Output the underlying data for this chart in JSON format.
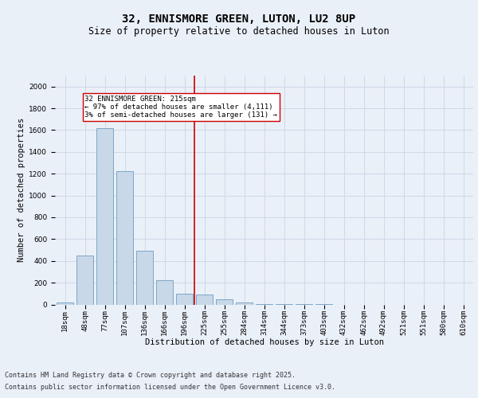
{
  "title_line1": "32, ENNISMORE GREEN, LUTON, LU2 8UP",
  "title_line2": "Size of property relative to detached houses in Luton",
  "xlabel": "Distribution of detached houses by size in Luton",
  "ylabel": "Number of detached properties",
  "categories": [
    "18sqm",
    "48sqm",
    "77sqm",
    "107sqm",
    "136sqm",
    "166sqm",
    "196sqm",
    "225sqm",
    "255sqm",
    "284sqm",
    "314sqm",
    "344sqm",
    "373sqm",
    "403sqm",
    "432sqm",
    "462sqm",
    "492sqm",
    "521sqm",
    "551sqm",
    "580sqm",
    "610sqm"
  ],
  "values": [
    20,
    450,
    1620,
    1220,
    490,
    220,
    100,
    90,
    50,
    20,
    5,
    2,
    1,
    1,
    0,
    0,
    0,
    0,
    0,
    0,
    0
  ],
  "bar_color": "#c8d8e8",
  "bar_edge_color": "#5b8db8",
  "grid_color": "#d0d8e8",
  "bg_color": "#eaf0f8",
  "vline_x": 6.5,
  "vline_color": "#cc0000",
  "annotation_text": "32 ENNISMORE GREEN: 215sqm\n← 97% of detached houses are smaller (4,111)\n3% of semi-detached houses are larger (131) →",
  "annotation_box_color": "#ffffff",
  "annotation_box_edge": "#cc0000",
  "ylim": [
    0,
    2100
  ],
  "yticks": [
    0,
    200,
    400,
    600,
    800,
    1000,
    1200,
    1400,
    1600,
    1800,
    2000
  ],
  "footer_line1": "Contains HM Land Registry data © Crown copyright and database right 2025.",
  "footer_line2": "Contains public sector information licensed under the Open Government Licence v3.0.",
  "title_fontsize": 10,
  "subtitle_fontsize": 8.5,
  "axis_fontsize": 7.5,
  "tick_fontsize": 6.5,
  "footer_fontsize": 6.0,
  "ann_fontsize": 6.5
}
